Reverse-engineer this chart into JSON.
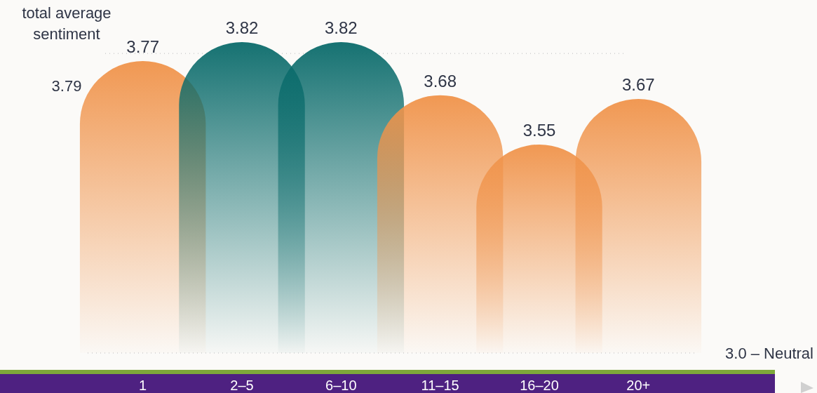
{
  "chart_data": {
    "type": "bar",
    "categories": [
      "1",
      "2–5",
      "6–10",
      "11–15",
      "16–20",
      "20+"
    ],
    "values": [
      3.77,
      3.82,
      3.82,
      3.68,
      3.55,
      3.67
    ],
    "colors": [
      "#f0934a",
      "#0a6b6b",
      "#0a6b6b",
      "#f0934a",
      "#f0934a",
      "#f0934a"
    ],
    "ylim": [
      3.0,
      3.82
    ],
    "data_labels": true,
    "tick_labels": "x",
    "ref_lines": [
      {
        "axis": "y",
        "value": 3.79,
        "label": "total average sentiment",
        "color": "#cfcfcf",
        "line_style": "dotted"
      },
      {
        "axis": "y",
        "value": 3.0,
        "label": "3.0 – Neutral",
        "color": "#cfcfcf",
        "line_style": "dotted"
      }
    ],
    "annotations": [
      "3.79"
    ]
  }
}
